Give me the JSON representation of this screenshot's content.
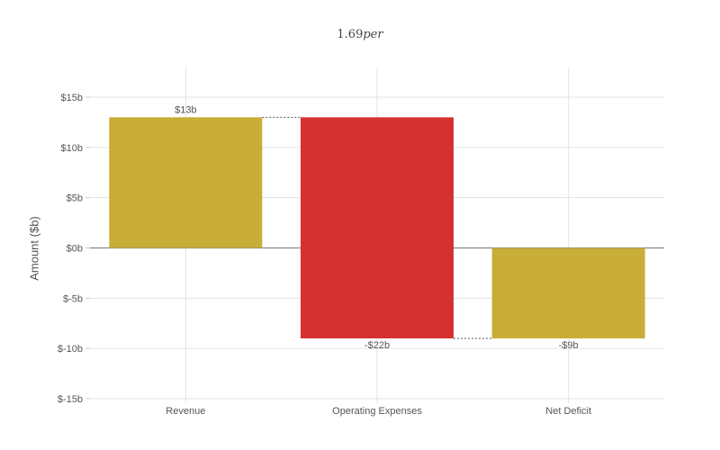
{
  "chart_data": {
    "type": "bar",
    "subtype": "waterfall",
    "title": "1.69per",
    "title_parts": {
      "number": "1.69",
      "italic": "per"
    },
    "xlabel": "",
    "ylabel": "Amount ($b)",
    "ylim": [
      -15,
      15
    ],
    "grid": true,
    "legend": null,
    "yticks": [
      15,
      10,
      5,
      0,
      -5,
      -10,
      -15
    ],
    "ytick_labels": [
      "$15b",
      "$10b",
      "$5b",
      "$0b",
      "$-5b",
      "$-10b",
      "$-15b"
    ],
    "categories": [
      "Revenue",
      "Operating Expenses",
      "Net Deficit"
    ],
    "values": [
      13,
      -22,
      -9
    ],
    "bars": [
      {
        "category": "Revenue",
        "base": 0,
        "top": 13,
        "value": 13,
        "label": "$13b",
        "color": "#c8ad36"
      },
      {
        "category": "Operating Expenses",
        "base": 13,
        "top": -9,
        "value": -22,
        "label": "-$22b",
        "color": "#d63132"
      },
      {
        "category": "Net Deficit",
        "base": 0,
        "top": -9,
        "value": -9,
        "label": "-$9b",
        "color": "#c8ad36"
      }
    ],
    "connectors": [
      {
        "from": "Revenue",
        "to": "Operating Expenses",
        "level": 13
      },
      {
        "from": "Operating Expenses",
        "to": "Net Deficit",
        "level": -9
      }
    ],
    "colors": {
      "increase_total": "#c8ad36",
      "decrease": "#d63132",
      "grid": "#e3e3e3",
      "zero_line": "#888888"
    }
  }
}
